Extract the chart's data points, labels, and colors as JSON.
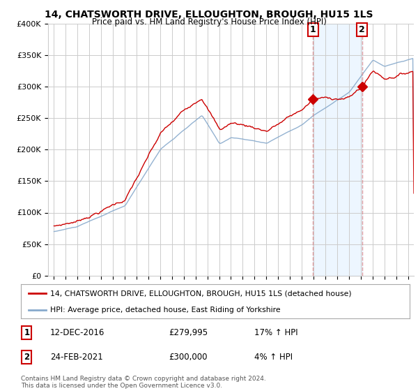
{
  "title": "14, CHATSWORTH DRIVE, ELLOUGHTON, BROUGH, HU15 1LS",
  "subtitle": "Price paid vs. HM Land Registry's House Price Index (HPI)",
  "legend_line1": "14, CHATSWORTH DRIVE, ELLOUGHTON, BROUGH, HU15 1LS (detached house)",
  "legend_line2": "HPI: Average price, detached house, East Riding of Yorkshire",
  "footnote": "Contains HM Land Registry data © Crown copyright and database right 2024.\nThis data is licensed under the Open Government Licence v3.0.",
  "transaction1_date": "12-DEC-2016",
  "transaction1_price": "£279,995",
  "transaction1_hpi": "17% ↑ HPI",
  "transaction2_date": "24-FEB-2021",
  "transaction2_price": "£300,000",
  "transaction2_hpi": "4% ↑ HPI",
  "property_color": "#cc0000",
  "hpi_color": "#88aacc",
  "vline_color": "#dd8888",
  "shade_color": "#ddeeff",
  "shade_alpha": 0.5,
  "ylim": [
    0,
    400000
  ],
  "yticks": [
    0,
    50000,
    100000,
    150000,
    200000,
    250000,
    300000,
    350000,
    400000
  ],
  "background_color": "#ffffff",
  "grid_color": "#cccccc",
  "transaction1_x": 2016.96,
  "transaction2_x": 2021.12,
  "xlim_left": 1995.0,
  "xlim_right": 2025.5
}
